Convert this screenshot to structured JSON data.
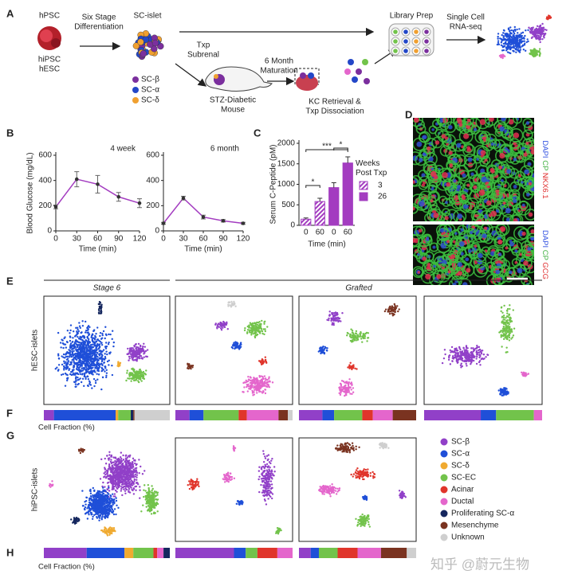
{
  "panel_labels": [
    "A",
    "B",
    "C",
    "D",
    "E",
    "F",
    "G",
    "H"
  ],
  "schematic": {
    "source": "hPSC",
    "sources": [
      "hiPSC",
      "hESC"
    ],
    "step1": [
      "Six Stage",
      "Differentiation"
    ],
    "islet": "SC-islet",
    "islet_cells": [
      {
        "name": "SC-β",
        "color": "#7b2f9e"
      },
      {
        "name": "SC-α",
        "color": "#2347c8"
      },
      {
        "name": "SC-δ",
        "color": "#f0a030"
      }
    ],
    "transplant": [
      "Txp",
      "Subrenal"
    ],
    "mouse": [
      "STZ-Diabetic",
      "Mouse"
    ],
    "maturation": [
      "6 Month",
      "Maturation"
    ],
    "retrieval": [
      "KC Retrieval &",
      "Txp Dissociation"
    ],
    "library": "Library Prep",
    "sequencing": [
      "Single Cell",
      "RNA-seq"
    ]
  },
  "chart_data": [
    {
      "type": "line",
      "title": "4 week",
      "ylabel": "Blood Glucose (mg/dL)",
      "xlabel": "Time (min)",
      "color": "#a33cc0",
      "x": [
        0,
        30,
        60,
        90,
        120
      ],
      "values": [
        190,
        410,
        370,
        270,
        220
      ],
      "errors": [
        15,
        60,
        70,
        35,
        35
      ],
      "xlim": [
        0,
        120
      ],
      "xticks": [
        0,
        30,
        60,
        90,
        120
      ],
      "ylim": [
        0,
        600
      ],
      "yticks": [
        0,
        200,
        400,
        600
      ]
    },
    {
      "type": "line",
      "title": "6 month",
      "xlabel": "Time (min)",
      "color": "#a33cc0",
      "x": [
        0,
        30,
        60,
        90,
        120
      ],
      "values": [
        60,
        260,
        110,
        80,
        60
      ],
      "errors": [
        8,
        15,
        15,
        10,
        8
      ],
      "xlim": [
        0,
        120
      ],
      "xticks": [
        0,
        30,
        60,
        90,
        120
      ],
      "ylim": [
        0,
        600
      ],
      "yticks": [
        0,
        200,
        400,
        600
      ]
    },
    {
      "type": "bar",
      "ylabel": "Serum C-Peptide (pM)",
      "xlabel": "Time (min)",
      "legend_title": "Weeks Post Txp",
      "categories": [
        "0",
        "60",
        "0",
        "60"
      ],
      "series": [
        {
          "name": "3",
          "color": "#a33cc0",
          "hatch": true,
          "values": [
            150,
            580,
            null,
            null
          ],
          "errors": [
            30,
            80,
            null,
            null
          ]
        },
        {
          "name": "26",
          "color": "#a33cc0",
          "hatch": false,
          "values": [
            null,
            null,
            920,
            1520
          ],
          "errors": [
            null,
            null,
            120,
            150
          ]
        }
      ],
      "annotations": [
        "*",
        "***",
        "*"
      ],
      "ylim": [
        0,
        2000
      ],
      "yticks": [
        0,
        500,
        1000,
        1500,
        2000
      ]
    }
  ],
  "stains": [
    [
      {
        "text": "DAPI",
        "color": "#3050e0"
      },
      {
        "text": "CP",
        "color": "#40b040"
      },
      {
        "text": "NKX6.1",
        "color": "#e03030"
      }
    ],
    [
      {
        "text": "DAPI",
        "color": "#3050e0"
      },
      {
        "text": "CP",
        "color": "#40b040"
      },
      {
        "text": "GCG",
        "color": "#e03030"
      }
    ]
  ],
  "headers": {
    "stage": "Stage 6",
    "grafted": "Grafted"
  },
  "rows": [
    "hESC-islets",
    "hiPSC-islets"
  ],
  "cell_types": [
    {
      "name": "SC-β",
      "color": "#9140c8"
    },
    {
      "name": "SC-α",
      "color": "#1f4fd8"
    },
    {
      "name": "SC-δ",
      "color": "#f0aa30"
    },
    {
      "name": "SC-EC",
      "color": "#72c34b"
    },
    {
      "name": "Acinar",
      "color": "#e0352b"
    },
    {
      "name": "Ductal",
      "color": "#e466cc"
    },
    {
      "name": "Proliferating SC-α",
      "color": "#15275e"
    },
    {
      "name": "Mesenchyme",
      "color": "#7a3320"
    },
    {
      "name": "Unknown",
      "color": "#cfcfcf"
    }
  ],
  "fractions": {
    "label": "Cell Fraction (%)",
    "hesc": [
      [
        8,
        49,
        2,
        10,
        0,
        0,
        2,
        1,
        28
      ],
      [
        12,
        12,
        0,
        30,
        7,
        27,
        0,
        8,
        4
      ],
      [
        20,
        10,
        0,
        24,
        9,
        17,
        0,
        20,
        0
      ],
      [
        48,
        13,
        0,
        32,
        0,
        7,
        0,
        0,
        0
      ]
    ],
    "hipsc": [
      [
        34,
        30,
        7,
        16,
        3,
        5,
        5,
        0,
        0
      ],
      [
        50,
        10,
        0,
        10,
        17,
        13,
        0,
        0,
        0
      ],
      [
        10,
        7,
        0,
        16,
        17,
        20,
        0,
        22,
        8
      ]
    ]
  },
  "watermark": "知乎 @蔚元生物"
}
